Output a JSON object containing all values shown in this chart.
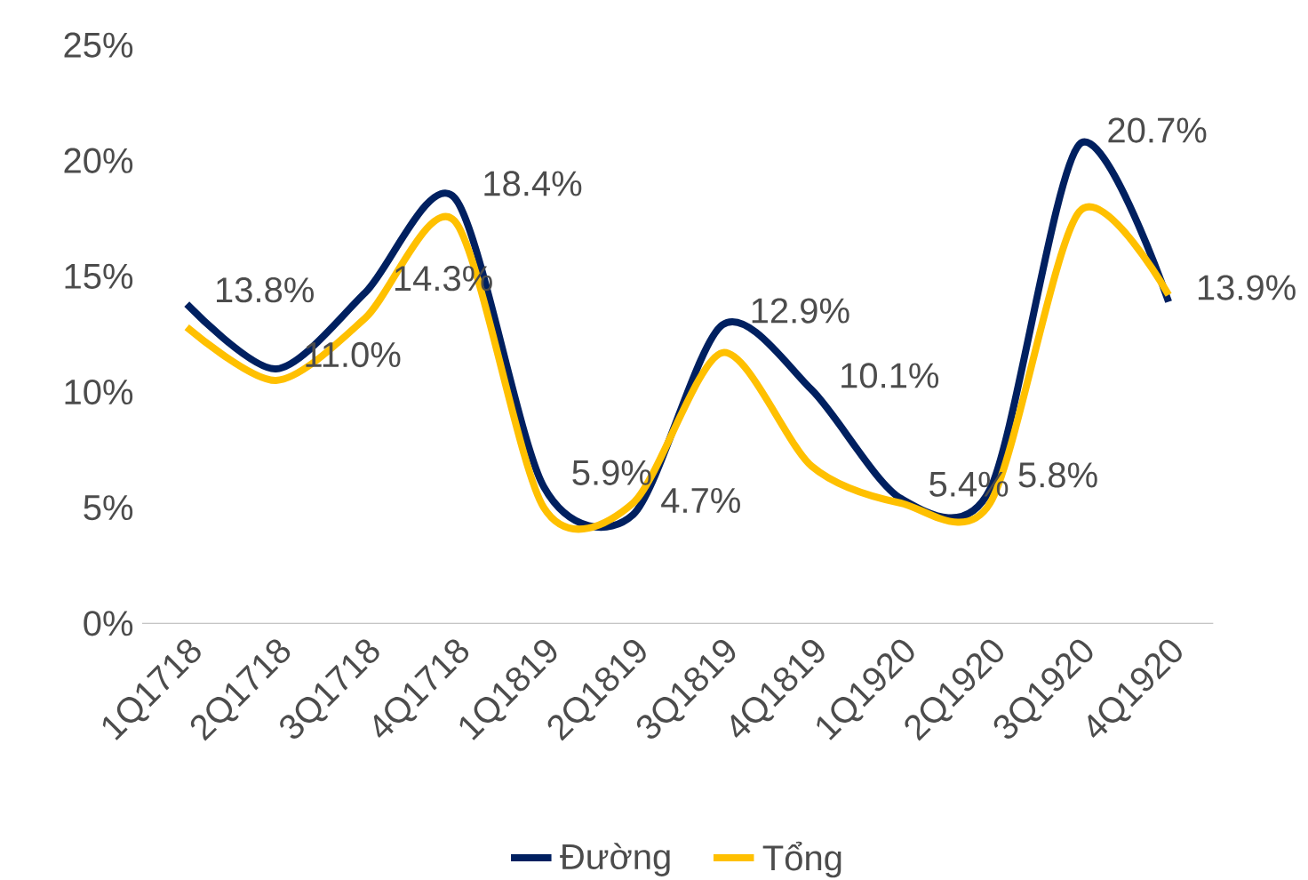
{
  "chart_data": {
    "type": "line",
    "categories": [
      "1Q1718",
      "2Q1718",
      "3Q1718",
      "4Q1718",
      "1Q1819",
      "2Q1819",
      "3Q1819",
      "4Q1819",
      "1Q1920",
      "2Q1920",
      "3Q1920",
      "4Q1920"
    ],
    "series": [
      {
        "name": "Đường",
        "color": "#002060",
        "values": [
          13.8,
          11.0,
          14.3,
          18.4,
          5.9,
          4.7,
          12.9,
          10.1,
          5.4,
          5.8,
          20.7,
          13.9
        ],
        "value_labels": [
          "13.8%",
          "11.0%",
          "14.3%",
          "18.4%",
          "5.9%",
          "4.7%",
          "12.9%",
          "10.1%",
          "5.4%",
          "5.8%",
          "20.7%",
          "13.9%"
        ]
      },
      {
        "name": "Tổng",
        "color": "#ffc000",
        "values": [
          12.8,
          10.5,
          13.2,
          17.4,
          5.0,
          5.2,
          11.7,
          6.8,
          5.2,
          5.2,
          17.8,
          14.2
        ]
      }
    ],
    "ylim": [
      0,
      25
    ],
    "yticks": [
      {
        "value": 0,
        "label": "0%"
      },
      {
        "value": 5,
        "label": "5%"
      },
      {
        "value": 10,
        "label": "10%"
      },
      {
        "value": 15,
        "label": "15%"
      },
      {
        "value": 20,
        "label": "20%"
      },
      {
        "value": 25,
        "label": "25%"
      }
    ],
    "grid": false,
    "legend": "bottom",
    "marker": "none",
    "line_style": "solid"
  }
}
